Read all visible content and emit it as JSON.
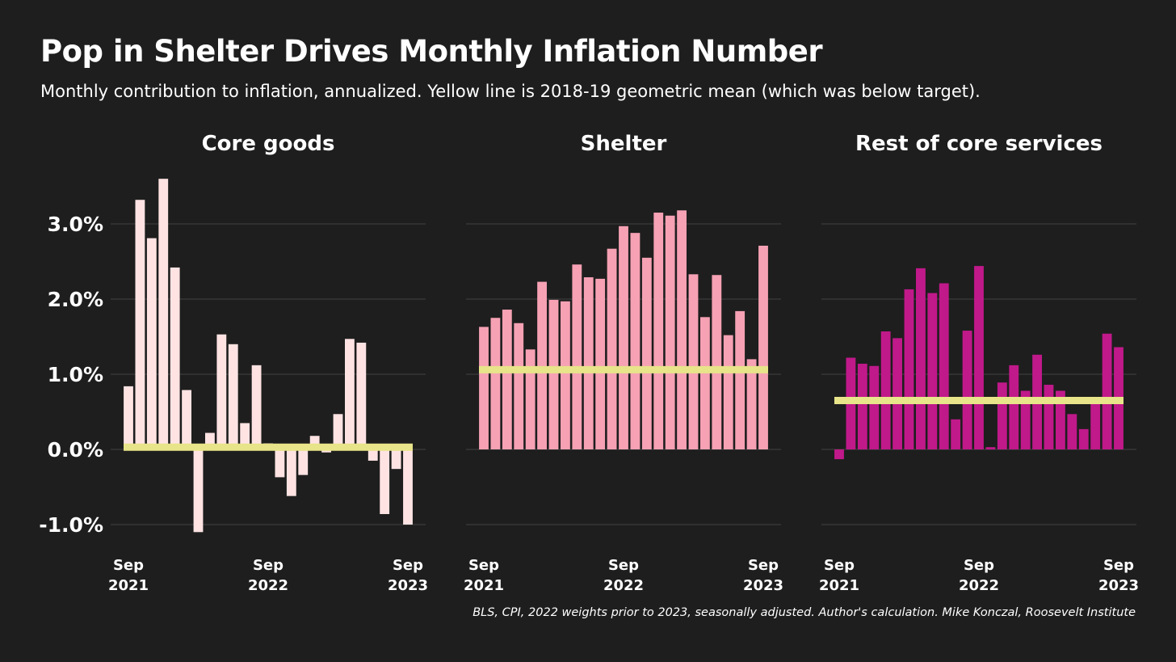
{
  "header": {
    "title": "Pop in Shelter Drives Monthly Inflation Number",
    "subtitle": "Monthly contribution to inflation, annualized. Yellow line is 2018-19 geometric mean (which was below target)."
  },
  "source": "BLS, CPI, 2022 weights prior to 2023, seasonally adjusted. Author's calculation. Mike Konczal, Roosevelt Institute",
  "colors": {
    "background": "#1e1e1e",
    "gridline": "#3c3c3c",
    "mean_line": "#e8e489",
    "core_goods": "#ffe3e3",
    "shelter": "#f6a1b4",
    "rest_services": "#c0198a"
  },
  "chart_data": [
    {
      "type": "bar",
      "title": "Core goods",
      "color_key": "core_goods",
      "x": [
        "Sep 2021",
        "Oct 2021",
        "Nov 2021",
        "Dec 2021",
        "Jan 2022",
        "Feb 2022",
        "Mar 2022",
        "Apr 2022",
        "May 2022",
        "Jun 2022",
        "Jul 2022",
        "Aug 2022",
        "Sep 2022",
        "Oct 2022",
        "Nov 2022",
        "Dec 2022",
        "Jan 2023",
        "Feb 2023",
        "Mar 2023",
        "Apr 2023",
        "May 2023",
        "Jun 2023",
        "Jul 2023",
        "Aug 2023",
        "Sep 2023"
      ],
      "values": [
        0.84,
        3.32,
        2.81,
        3.6,
        2.42,
        0.79,
        -1.1,
        0.22,
        1.53,
        1.4,
        0.35,
        1.12,
        0.08,
        -0.37,
        -0.62,
        -0.34,
        0.18,
        -0.04,
        0.47,
        1.47,
        1.42,
        -0.15,
        -0.86,
        -0.26,
        -1.0
      ],
      "mean_line": 0.03,
      "xtick_labels": [
        [
          "Sep",
          "2021"
        ],
        [
          "Sep",
          "2022"
        ],
        [
          "Sep",
          "2023"
        ]
      ],
      "xtick_index": [
        0,
        12,
        24
      ],
      "ylim": [
        -1.25,
        3.6
      ],
      "yticks": [
        -1.0,
        0.0,
        1.0,
        2.0,
        3.0
      ],
      "ytick_labels": [
        "-1.0%",
        "0.0%",
        "1.0%",
        "2.0%",
        "3.0%"
      ]
    },
    {
      "type": "bar",
      "title": "Shelter",
      "color_key": "shelter",
      "x": [
        "Sep 2021",
        "Oct 2021",
        "Nov 2021",
        "Dec 2021",
        "Jan 2022",
        "Feb 2022",
        "Mar 2022",
        "Apr 2022",
        "May 2022",
        "Jun 2022",
        "Jul 2022",
        "Aug 2022",
        "Sep 2022",
        "Oct 2022",
        "Nov 2022",
        "Dec 2022",
        "Jan 2023",
        "Feb 2023",
        "Mar 2023",
        "Apr 2023",
        "May 2023",
        "Jun 2023",
        "Jul 2023",
        "Aug 2023",
        "Sep 2023"
      ],
      "values": [
        1.63,
        1.75,
        1.86,
        1.68,
        1.33,
        2.23,
        1.99,
        1.97,
        2.46,
        2.29,
        2.27,
        2.67,
        2.97,
        2.88,
        2.55,
        3.15,
        3.11,
        3.18,
        2.33,
        1.76,
        2.32,
        1.52,
        1.84,
        1.2,
        2.71
      ],
      "mean_line": 1.06,
      "xtick_labels": [
        [
          "Sep",
          "2021"
        ],
        [
          "Sep",
          "2022"
        ],
        [
          "Sep",
          "2023"
        ]
      ],
      "xtick_index": [
        0,
        12,
        24
      ],
      "ylim": [
        -1.25,
        3.6
      ],
      "yticks": [
        -1.0,
        0.0,
        1.0,
        2.0,
        3.0
      ]
    },
    {
      "type": "bar",
      "title": "Rest of core services",
      "color_key": "rest_services",
      "x": [
        "Sep 2021",
        "Oct 2021",
        "Nov 2021",
        "Dec 2021",
        "Jan 2022",
        "Feb 2022",
        "Mar 2022",
        "Apr 2022",
        "May 2022",
        "Jun 2022",
        "Jul 2022",
        "Aug 2022",
        "Sep 2022",
        "Oct 2022",
        "Nov 2022",
        "Dec 2022",
        "Jan 2023",
        "Feb 2023",
        "Mar 2023",
        "Apr 2023",
        "May 2023",
        "Jun 2023",
        "Jul 2023",
        "Aug 2023",
        "Sep 2023"
      ],
      "values": [
        -0.13,
        1.22,
        1.14,
        1.11,
        1.57,
        1.48,
        2.13,
        2.41,
        2.08,
        2.21,
        0.4,
        1.58,
        2.44,
        0.03,
        0.89,
        1.12,
        0.78,
        1.26,
        0.86,
        0.78,
        0.47,
        0.27,
        0.61,
        1.54,
        1.36
      ],
      "mean_line": 0.65,
      "xtick_labels": [
        [
          "Sep",
          "2021"
        ],
        [
          "Sep",
          "2022"
        ],
        [
          "Sep",
          "2023"
        ]
      ],
      "xtick_index": [
        0,
        12,
        24
      ],
      "ylim": [
        -1.25,
        3.6
      ],
      "yticks": [
        -1.0,
        0.0,
        1.0,
        2.0,
        3.0
      ]
    }
  ]
}
